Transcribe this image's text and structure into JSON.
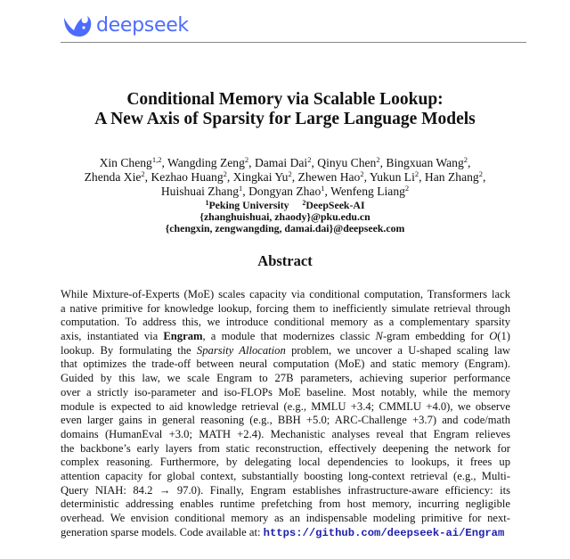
{
  "header": {
    "logo_text": "deepseek",
    "brand_color": "#4d6bfe",
    "logo_icon": "whale-icon"
  },
  "title": {
    "line1": "Conditional Memory via Scalable Lookup:",
    "line2": "A New Axis of Sparsity for Large Language Models"
  },
  "authors": [
    [
      [
        "Xin Cheng",
        "1,2"
      ],
      [
        "Wangding Zeng",
        "2"
      ],
      [
        "Damai Dai",
        "2"
      ],
      [
        "Qinyu Chen",
        "2"
      ],
      [
        "Bingxuan Wang",
        "2"
      ]
    ],
    [
      [
        "Zhenda Xie",
        "2"
      ],
      [
        "Kezhao Huang",
        "2"
      ],
      [
        "Xingkai Yu",
        "2"
      ],
      [
        "Zhewen Hao",
        "2"
      ],
      [
        "Yukun Li",
        "2"
      ],
      [
        "Han Zhang",
        "2"
      ]
    ],
    [
      [
        "Huishuai Zhang",
        "1"
      ],
      [
        "Dongyan Zhao",
        "1"
      ],
      [
        "Wenfeng Liang",
        "2"
      ]
    ]
  ],
  "affiliations": {
    "aff1_mark": "1",
    "aff1": "Peking University",
    "aff2_mark": "2",
    "aff2": "DeepSeek-AI",
    "email1": "{zhanghuishuai, zhaody}@pku.edu.cn",
    "email2": "{chengxin, zengwangding, damai.dai}@deepseek.com"
  },
  "abstract": {
    "heading": "Abstract",
    "lines": [
      [
        [
          "While Mixture-of-Experts (MoE) scales capacity via conditional computation, Transformers lack",
          ""
        ]
      ],
      [
        [
          "a native primitive for knowledge lookup, forcing them to inefficiently simulate retrieval through",
          ""
        ]
      ],
      [
        [
          "computation. To address this, we introduce conditional memory as a complementary sparsity",
          ""
        ]
      ],
      [
        [
          "axis, instantiated via ",
          ""
        ],
        [
          "Engram",
          "b"
        ],
        [
          ", a module that modernizes classic ",
          ""
        ],
        [
          "N",
          "i"
        ],
        [
          "-gram embedding for ",
          ""
        ],
        [
          "O",
          "i"
        ],
        [
          "(1)",
          ""
        ]
      ],
      [
        [
          "lookup. By formulating the ",
          ""
        ],
        [
          "Sparsity Allocation",
          "i"
        ],
        [
          " problem, we uncover a U-shaped scaling law",
          ""
        ]
      ],
      [
        [
          "that optimizes the trade-off between neural computation (MoE) and static memory (Engram).",
          ""
        ]
      ],
      [
        [
          "Guided by this law, we scale Engram to 27B parameters, achieving superior performance",
          ""
        ]
      ],
      [
        [
          "over a strictly iso-parameter and iso-FLOPs MoE baseline. Most notably, while the memory",
          ""
        ]
      ],
      [
        [
          "module is expected to aid knowledge retrieval (e.g., MMLU +3.4; CMMLU +4.0), we observe",
          ""
        ]
      ],
      [
        [
          "even larger gains in general reasoning (e.g., BBH +5.0; ARC-Challenge +3.7) and code/math",
          ""
        ]
      ],
      [
        [
          "domains (HumanEval +3.0; MATH +2.4). Mechanistic analyses reveal that Engram relieves",
          ""
        ]
      ],
      [
        [
          "the backbone’s early layers from static reconstruction, effectively deepening the network for",
          ""
        ]
      ],
      [
        [
          "complex reasoning. Furthermore, by delegating local dependencies to lookups, it frees up",
          ""
        ]
      ],
      [
        [
          "attention capacity for global context, substantially boosting long-context retrieval (e.g., Multi-",
          ""
        ]
      ],
      [
        [
          "Query NIAH: 84.2 → 97.0). Finally, Engram establishes infrastructure-aware efficiency: its",
          ""
        ]
      ],
      [
        [
          "deterministic addressing enables runtime prefetching from host memory, incurring negligible",
          ""
        ]
      ],
      [
        [
          "overhead. We envision conditional memory as an indispensable modeling primitive for next-",
          ""
        ]
      ],
      [
        [
          "generation sparse models. Code available at: ",
          ""
        ],
        [
          "https://github.com/deepseek-ai/Engram",
          "link"
        ]
      ]
    ]
  }
}
